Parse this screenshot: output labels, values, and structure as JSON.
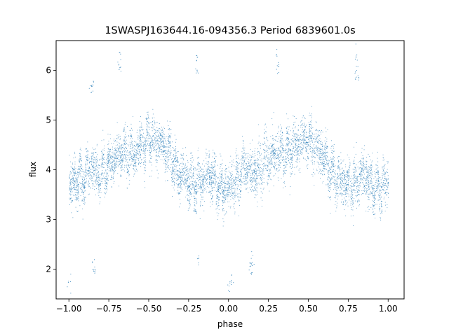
{
  "chart_data": {
    "type": "scatter",
    "title": "1SWASPJ163644.16-094356.3 Period 6839601.0s",
    "xlabel": "phase",
    "ylabel": "flux",
    "xlim": [
      -1.08,
      1.1
    ],
    "ylim": [
      1.4,
      6.6
    ],
    "xticks": [
      -1.0,
      -0.75,
      -0.5,
      -0.25,
      0.0,
      0.25,
      0.5,
      0.75,
      1.0
    ],
    "xtick_labels": [
      "−1.00",
      "−0.75",
      "−0.50",
      "−0.25",
      "0.00",
      "0.25",
      "0.50",
      "0.75",
      "1.00"
    ],
    "yticks": [
      2,
      3,
      4,
      5,
      6
    ],
    "ytick_labels": [
      "2",
      "3",
      "4",
      "5",
      "6"
    ],
    "grid": false,
    "legend": "none",
    "marker_color": "#1f77b4",
    "series": [
      {
        "note_phase_folded": true,
        "x": [
          -0.99,
          -0.97,
          -0.95,
          -0.93,
          -0.91,
          -0.89,
          -0.87,
          -0.85,
          -0.83,
          -0.81,
          -0.79,
          -0.77,
          -0.75,
          -0.73,
          -0.71,
          -0.69,
          -0.67,
          -0.65,
          -0.63,
          -0.61,
          -0.59,
          -0.57,
          -0.55,
          -0.53,
          -0.51,
          -0.49,
          -0.47,
          -0.45,
          -0.43,
          -0.41,
          -0.39,
          -0.37,
          -0.35,
          -0.33,
          -0.31,
          -0.29,
          -0.27,
          -0.25,
          -0.23,
          -0.21,
          -0.19,
          -0.17,
          -0.15,
          -0.13,
          -0.11,
          -0.09,
          -0.07,
          -0.05,
          -0.03,
          -0.01,
          0.01,
          0.03,
          0.05,
          0.07,
          0.09,
          0.11,
          0.13,
          0.15,
          0.17,
          0.19,
          0.21,
          0.23,
          0.25,
          0.27,
          0.29,
          0.31,
          0.33,
          0.35,
          0.37,
          0.39,
          0.41,
          0.43,
          0.45,
          0.47,
          0.49,
          0.51,
          0.53,
          0.55,
          0.57,
          0.59,
          0.61,
          0.63,
          0.65,
          0.67,
          0.69,
          0.71,
          0.73,
          0.75,
          0.77,
          0.79,
          0.81,
          0.83,
          0.85,
          0.87,
          0.89,
          0.91,
          0.93,
          0.95,
          0.97,
          0.99
        ],
        "y": [
          3.7,
          3.75,
          3.8,
          3.85,
          3.8,
          3.9,
          4.0,
          4.05,
          3.95,
          3.9,
          3.95,
          4.0,
          4.1,
          4.2,
          4.25,
          4.3,
          4.35,
          4.4,
          4.35,
          4.3,
          4.35,
          4.4,
          4.45,
          4.5,
          4.55,
          4.6,
          4.6,
          4.55,
          4.5,
          4.45,
          4.4,
          4.3,
          4.15,
          4.0,
          3.9,
          3.85,
          3.8,
          3.75,
          3.7,
          3.75,
          3.7,
          3.75,
          3.8,
          3.85,
          3.9,
          3.8,
          3.7,
          3.65,
          3.6,
          3.65,
          3.7,
          3.75,
          3.8,
          3.9,
          4.0,
          4.05,
          3.95,
          3.9,
          3.95,
          4.0,
          4.1,
          4.2,
          4.25,
          4.3,
          4.35,
          4.4,
          4.35,
          4.3,
          4.35,
          4.4,
          4.45,
          4.5,
          4.55,
          4.6,
          4.6,
          4.55,
          4.5,
          4.45,
          4.4,
          4.3,
          4.15,
          4.0,
          3.9,
          3.85,
          3.8,
          3.75,
          3.7,
          3.75,
          3.7,
          3.75,
          3.8,
          3.85,
          3.9,
          3.8,
          3.7,
          3.65,
          3.6,
          3.65,
          3.7,
          3.75
        ]
      }
    ],
    "outliers": {
      "x": [
        -0.86,
        -0.85,
        -0.85,
        -0.84,
        -0.69,
        -0.68,
        -0.2,
        -0.2,
        -0.19,
        0.14,
        0.14,
        0.15,
        0.3,
        0.31,
        0.8,
        0.8,
        0.81,
        -1.0,
        0.0,
        0.02
      ],
      "y": [
        5.65,
        5.7,
        2.1,
        2.0,
        6.25,
        6.1,
        6.25,
        6.0,
        2.2,
        2.1,
        2.0,
        2.2,
        6.25,
        6.1,
        6.3,
        6.0,
        5.9,
        1.7,
        1.65,
        1.8
      ]
    }
  }
}
